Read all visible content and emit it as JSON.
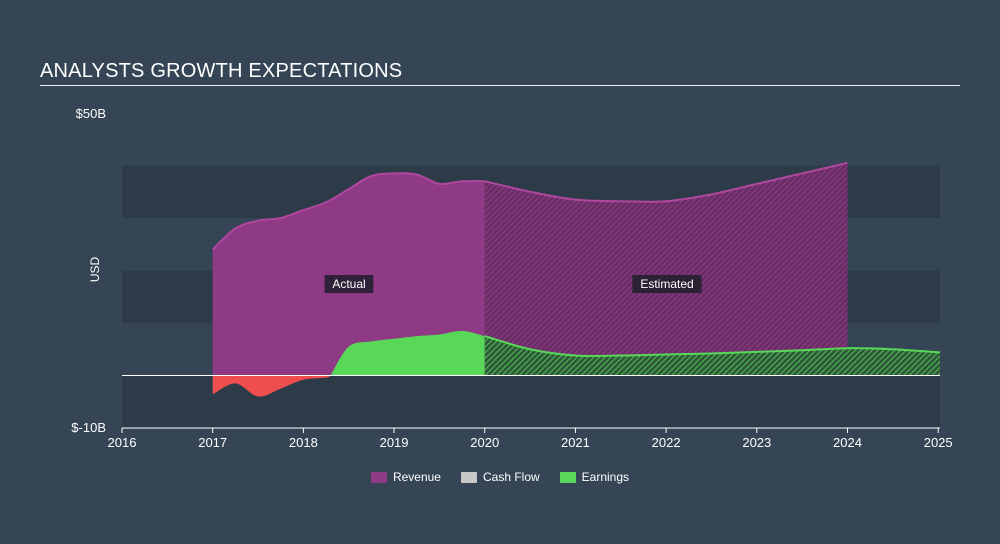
{
  "header": {
    "title": "ANALYSTS GROWTH EXPECTATIONS"
  },
  "colors": {
    "background": "#354555",
    "band": "#2d3b49",
    "revenue": "#8e3a85",
    "revenue_line": "#b0479f",
    "cash_flow": "#c8c8c8",
    "earnings_positive": "#58d758",
    "earnings_negative": "#ee4e4e",
    "zero_line": "#ffffff"
  },
  "chart_data": {
    "type": "area",
    "title": "ANALYSTS GROWTH EXPECTATIONS",
    "xlabel": "",
    "ylabel": "USD",
    "ylim": [
      -10,
      50
    ],
    "xlim": [
      2016,
      2025.02
    ],
    "y_tick_labels": [
      "$50B",
      "$-10B"
    ],
    "x_ticks": [
      2016,
      2017,
      2018,
      2019,
      2020,
      2021,
      2022,
      2023,
      2024,
      2025
    ],
    "x_tick_labels": [
      "2016",
      "2017",
      "2018",
      "2019",
      "2020",
      "2021",
      "2022",
      "2023",
      "2024",
      "2025"
    ],
    "actual_end": 2020,
    "annotations": {
      "actual": "Actual",
      "estimated": "Estimated"
    },
    "legend": {
      "placement": "bottom-center"
    },
    "series": [
      {
        "name": "Revenue",
        "x": [
          2017.0,
          2017.25,
          2017.5,
          2017.75,
          2018.0,
          2018.25,
          2018.5,
          2018.75,
          2019.0,
          2019.25,
          2019.5,
          2019.75,
          2020.0,
          2020.5,
          2021.0,
          2021.5,
          2022.0,
          2022.5,
          2023.0,
          2023.5,
          2024.0
        ],
        "y": [
          24,
          28,
          29.5,
          30,
          31.5,
          33,
          35.5,
          38,
          38.5,
          38.3,
          36.5,
          37,
          37,
          35,
          33.5,
          33.2,
          33.2,
          34.5,
          36.5,
          38.5,
          40.5
        ]
      },
      {
        "name": "Cash Flow",
        "x": [],
        "y": []
      },
      {
        "name": "Earnings",
        "x": [
          2017.0,
          2017.25,
          2017.5,
          2017.75,
          2018.0,
          2018.25,
          2018.3,
          2018.5,
          2018.75,
          2019.0,
          2019.25,
          2019.5,
          2019.75,
          2020.0,
          2020.5,
          2021.0,
          2021.5,
          2022.0,
          2022.5,
          2023.0,
          2023.5,
          2024.0,
          2024.5,
          2025.02
        ],
        "y": [
          -3.6,
          -1.5,
          -4,
          -2.5,
          -0.8,
          -0.4,
          0,
          5.5,
          6.5,
          7,
          7.5,
          7.8,
          8.5,
          7.5,
          5,
          3.8,
          3.8,
          4,
          4.2,
          4.5,
          4.8,
          5.2,
          5,
          4.4
        ]
      }
    ]
  }
}
